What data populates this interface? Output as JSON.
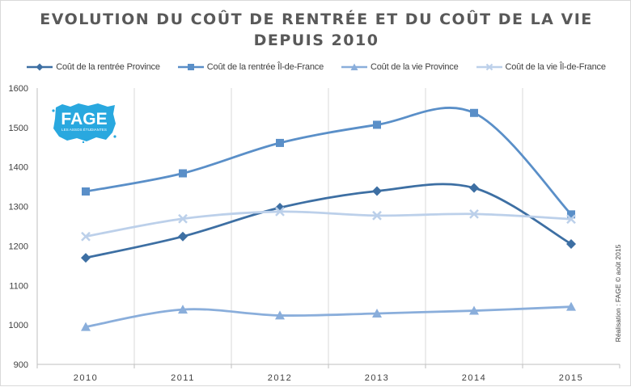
{
  "chart_data": {
    "type": "line",
    "title_lines": [
      "EVOLUTION DU COÛT DE RENTRÉE ET DU COÛT DE LA VIE",
      "DEPUIS 2010"
    ],
    "categories": [
      "2010",
      "2011",
      "2012",
      "2013",
      "2014",
      "2015"
    ],
    "ylim": [
      900,
      1600
    ],
    "yticks": [
      900,
      1000,
      1100,
      1200,
      1300,
      1400,
      1500,
      1600
    ],
    "grid": "vertical",
    "legend_position": "top",
    "series": [
      {
        "name": "Coût de la rentrée Province",
        "values": [
          1170,
          1224,
          1297,
          1339,
          1347,
          1205
        ],
        "color": "#3d6fa3",
        "marker": "diamond"
      },
      {
        "name": "Coût de la rentrée Îl-de-France",
        "values": [
          1338,
          1384,
          1461,
          1507,
          1537,
          1280
        ],
        "color": "#5a8fc8",
        "marker": "square"
      },
      {
        "name": "Coût de la vie Province",
        "values": [
          995,
          1039,
          1024,
          1029,
          1036,
          1046
        ],
        "color": "#8aaedb",
        "marker": "triangle"
      },
      {
        "name": "Coût de la vie Îl-de-France",
        "values": [
          1224,
          1269,
          1287,
          1277,
          1281,
          1268
        ],
        "color": "#bcd0ea",
        "marker": "x"
      }
    ]
  },
  "logo": {
    "text": "FAGE",
    "subtext": "LES ASSOS ÉTUDIANTES",
    "color": "#29a8df"
  },
  "credit": "Réalisation : FAGE © août 2015"
}
